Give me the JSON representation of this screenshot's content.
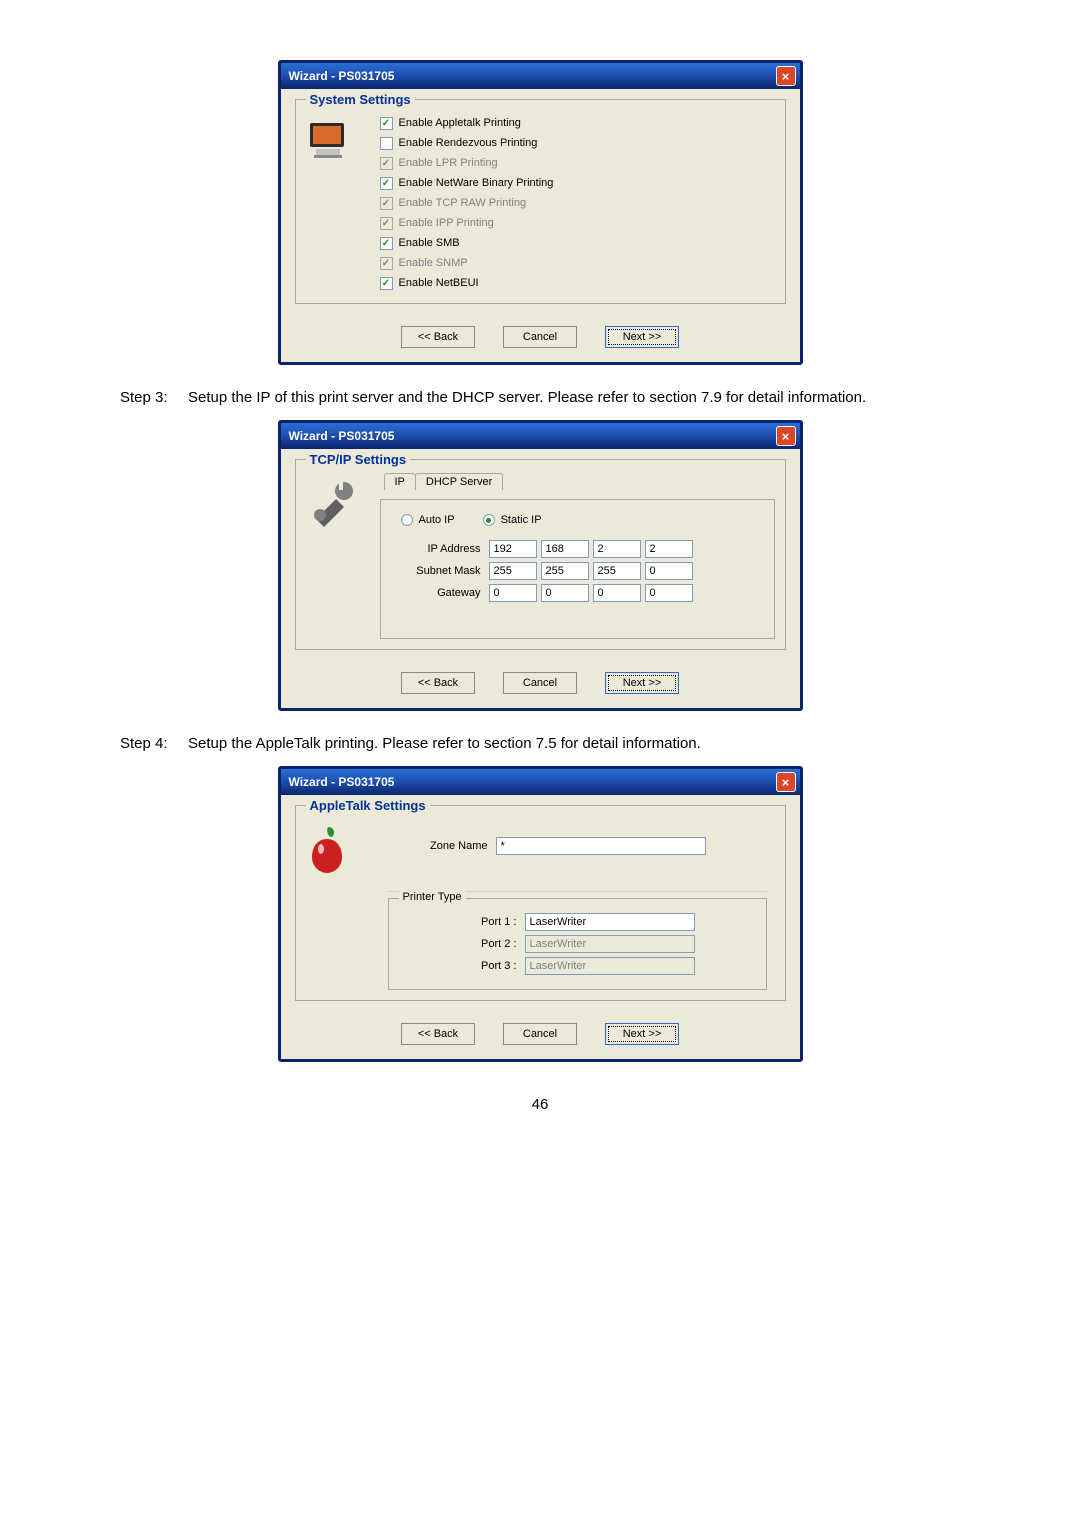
{
  "dialog_title": "Wizard - PS031705",
  "system": {
    "panel_title": "System Settings",
    "items": [
      {
        "label": "Enable Appletalk Printing",
        "checked": true,
        "disabled": false
      },
      {
        "label": "Enable Rendezvous Printing",
        "checked": false,
        "disabled": false
      },
      {
        "label": "Enable LPR Printing",
        "checked": true,
        "disabled": true
      },
      {
        "label": "Enable NetWare Binary Printing",
        "checked": true,
        "disabled": false
      },
      {
        "label": "Enable TCP RAW Printing",
        "checked": true,
        "disabled": true
      },
      {
        "label": "Enable IPP Printing",
        "checked": true,
        "disabled": true
      },
      {
        "label": "Enable SMB",
        "checked": true,
        "disabled": false
      },
      {
        "label": "Enable SNMP",
        "checked": true,
        "disabled": true
      },
      {
        "label": "Enable NetBEUI",
        "checked": true,
        "disabled": false
      }
    ]
  },
  "tcpip": {
    "panel_title": "TCP/IP Settings",
    "tabs": {
      "ip": "IP",
      "dhcp": "DHCP Server"
    },
    "radios": {
      "auto": "Auto IP",
      "static": "Static IP"
    },
    "labels": {
      "ipaddr": "IP Address",
      "subnet": "Subnet Mask",
      "gateway": "Gateway"
    },
    "ip": [
      "192",
      "168",
      "2",
      "2"
    ],
    "subnet": [
      "255",
      "255",
      "255",
      "0"
    ],
    "gateway": [
      "0",
      "0",
      "0",
      "0"
    ]
  },
  "appletalk": {
    "panel_title": "AppleTalk Settings",
    "zone_label": "Zone Name",
    "zone_value": "*",
    "printer_type_label": "Printer Type",
    "ports": [
      {
        "label": "Port 1 :",
        "value": "LaserWriter",
        "disabled": false
      },
      {
        "label": "Port 2 :",
        "value": "LaserWriter",
        "disabled": true
      },
      {
        "label": "Port 3 :",
        "value": "LaserWriter",
        "disabled": true
      }
    ]
  },
  "buttons": {
    "back": "<< Back",
    "cancel": "Cancel",
    "next": "Next >>"
  },
  "steps": {
    "s3": "Setup the IP of this print server and the DHCP server. Please refer to section 7.9 for detail information.",
    "s4": "Setup the AppleTalk printing. Please refer to section 7.5 for detail information."
  },
  "page_number": "46"
}
